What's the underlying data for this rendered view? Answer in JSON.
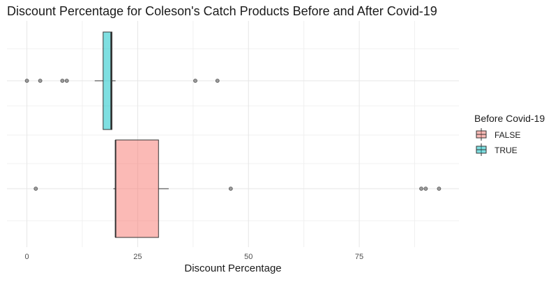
{
  "chart_data": {
    "type": "boxplot",
    "orientation": "horizontal",
    "title": "Discount Percentage for Coleson's Catch Products Before and After Covid-19",
    "xlabel": "Discount Percentage",
    "ylabel": "",
    "xlim": [
      -4.5,
      97.5
    ],
    "x_ticks": [
      0,
      25,
      50,
      75
    ],
    "grid": true,
    "legend": {
      "title": "Before Covid-19",
      "position": "right",
      "entries": [
        {
          "label": "FALSE",
          "color": "#f8766d"
        },
        {
          "label": "TRUE",
          "color": "#00bfc4"
        }
      ]
    },
    "series": [
      {
        "group": "TRUE",
        "color": "#00bfc4",
        "whisker_low": 15.3,
        "q1": 17.2,
        "median": 19,
        "q3": 19.2,
        "whisker_high": 20,
        "outliers": [
          0,
          3,
          8,
          9,
          38,
          43
        ]
      },
      {
        "group": "FALSE",
        "color": "#f8766d",
        "whisker_low": 19.5,
        "q1": 20,
        "median": 20,
        "q3": 29.7,
        "whisker_high": 32,
        "outliers": [
          2,
          46,
          89,
          90,
          93
        ]
      }
    ]
  }
}
